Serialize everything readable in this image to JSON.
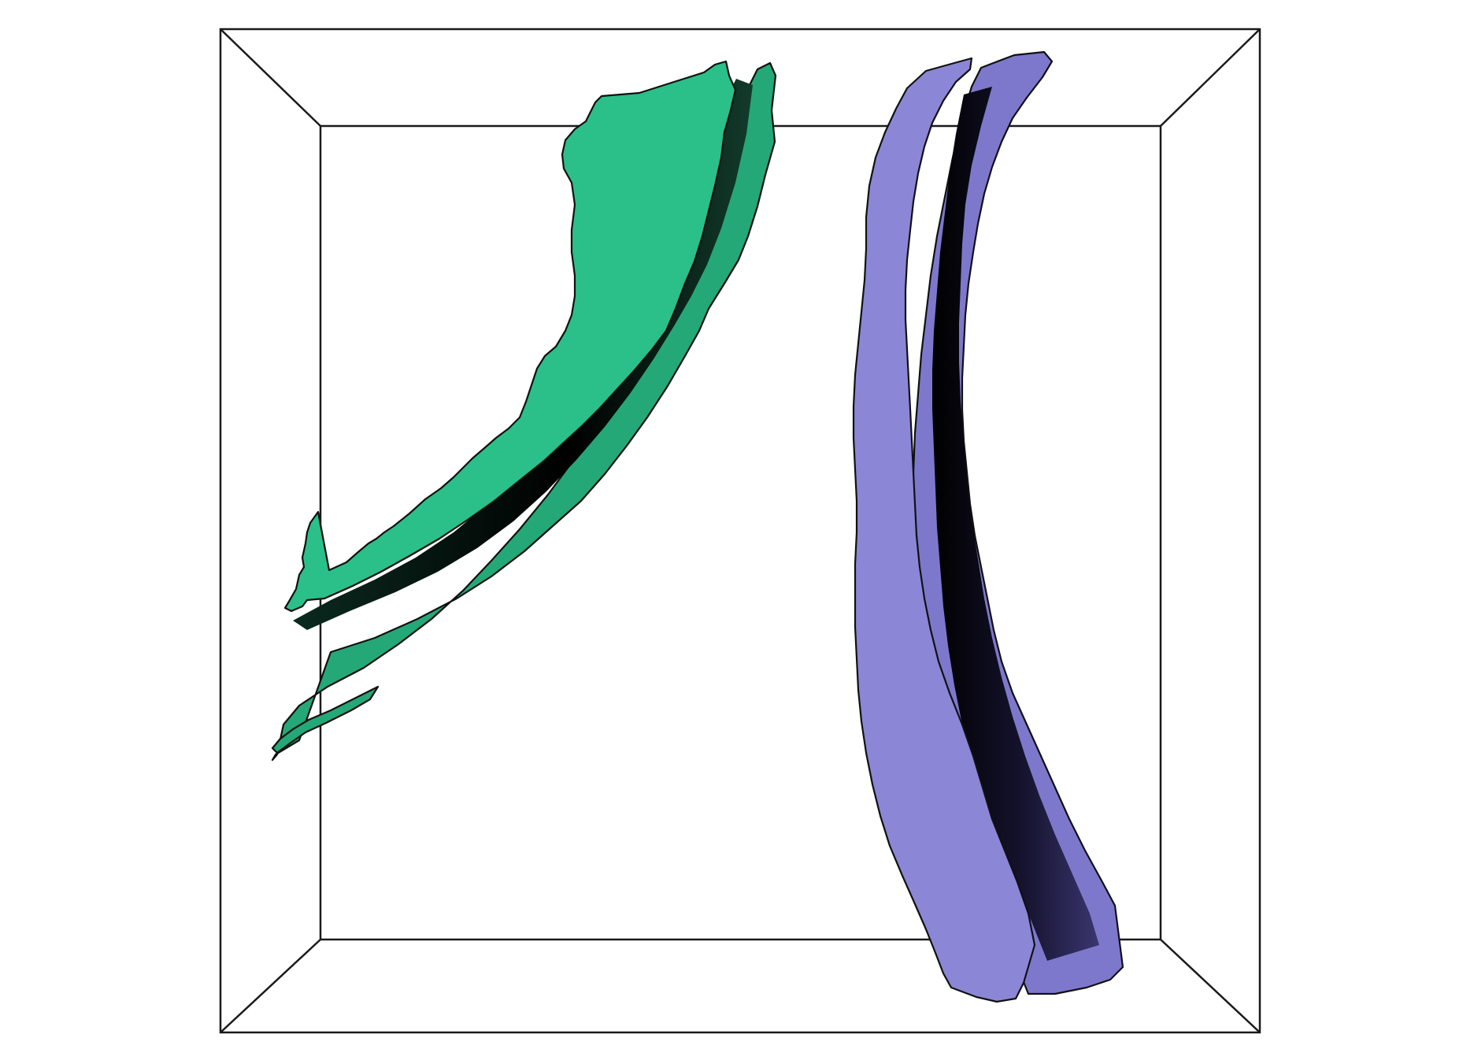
{
  "scene": {
    "background": "#ffffff",
    "wireframe_color": "#1a1a1a",
    "objects": [
      {
        "name": "green-membrane-pair",
        "color_front": "#2bbf8a",
        "color_back": "#24a877",
        "shadow": "#0b2a1f"
      },
      {
        "name": "purple-membrane-pair",
        "color_front": "#8b86d6",
        "color_back": "#7d78cc",
        "shadow": "#15132e"
      }
    ]
  }
}
